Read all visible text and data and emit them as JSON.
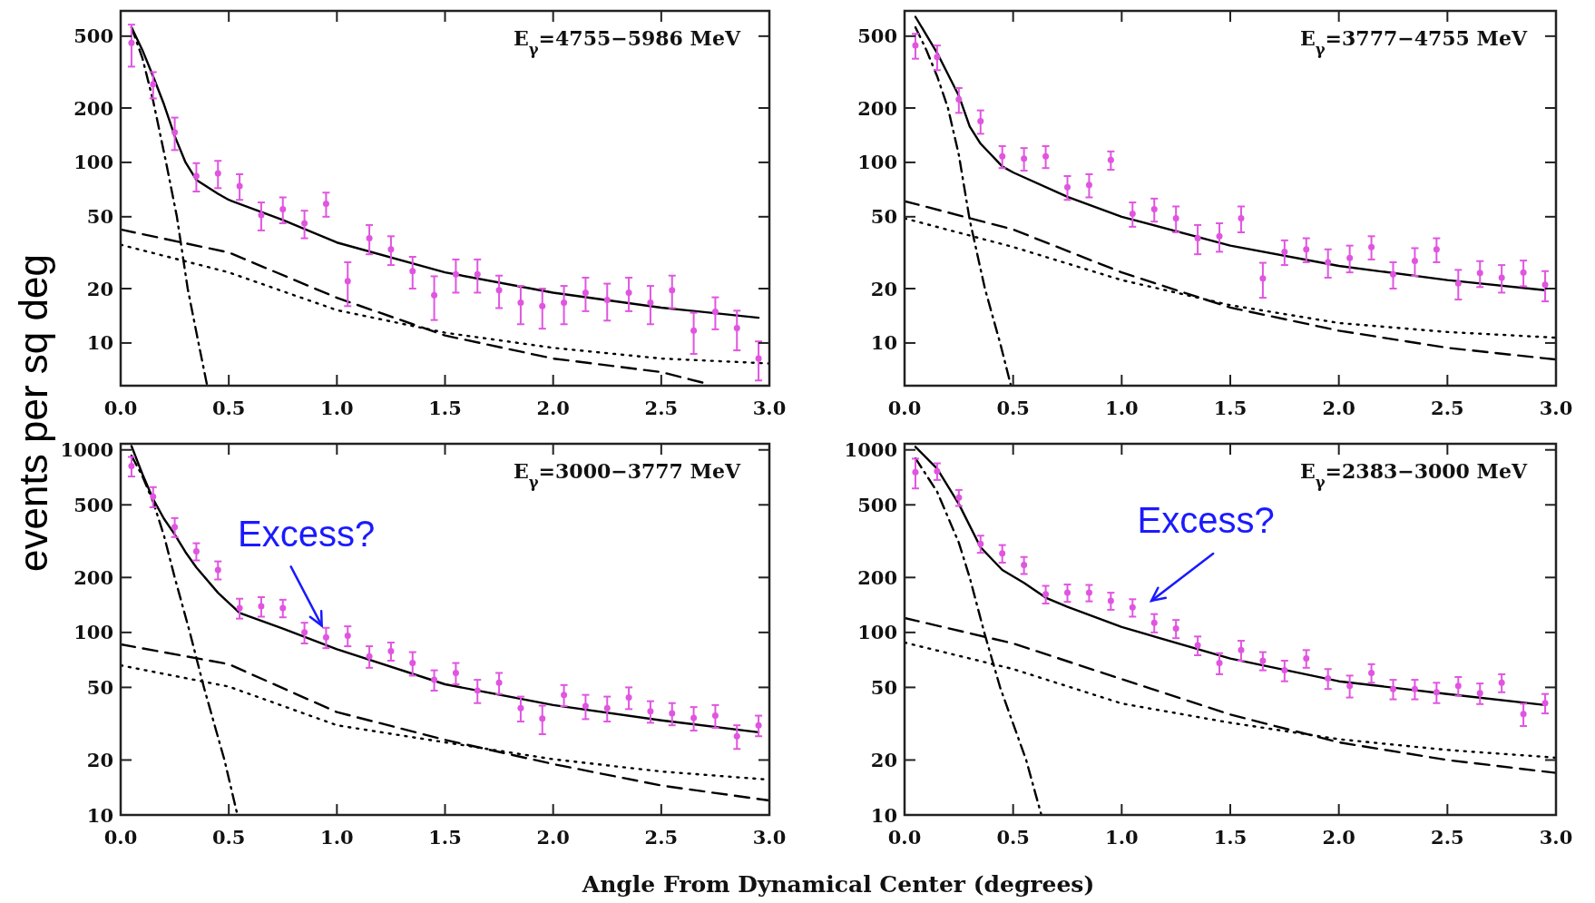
{
  "chart_data": [
    {
      "type": "scatter",
      "ylabel": "events per sq deg",
      "annotations": [
        "E$_{γ}$=4755−5986 MeV"
      ],
      "xlim": [
        0,
        3
      ],
      "xticks": [
        {
          "value": 0,
          "label": "0.0"
        },
        0.5,
        {
          "value": 1,
          "label": "1.0"
        },
        1.5,
        {
          "value": 2,
          "label": "2.0"
        },
        2.5,
        {
          "value": 3,
          "label": "3.0"
        }
      ],
      "ylim": [
        5.8,
        690
      ],
      "yticks": [
        10,
        20,
        50,
        100,
        200,
        500
      ],
      "log": "y",
      "series": [
        {
          "color": "#e055e0",
          "marker": "circle",
          "x": [
            0.05,
            0.15,
            0.25,
            0.35,
            0.45,
            0.55,
            0.65,
            0.75,
            0.85,
            0.95,
            1.05,
            1.15,
            1.25,
            1.35,
            1.45,
            1.55,
            1.65,
            1.75,
            1.85,
            1.95,
            2.05,
            2.15,
            2.25,
            2.35,
            2.45,
            2.55,
            2.65,
            2.75,
            2.85,
            2.95
          ],
          "values": [
            459,
            271,
            147,
            84,
            87,
            74,
            51,
            55,
            46,
            59,
            22,
            38,
            33,
            25,
            18.4,
            24,
            24,
            19.6,
            16.7,
            16,
            16.7,
            19,
            17.3,
            19,
            16.7,
            19.6,
            11.7,
            14.9,
            12.1,
            8.2
          ],
          "errors": [
            120,
            45,
            30,
            15,
            15,
            12,
            9,
            9,
            8,
            9,
            6,
            7,
            6,
            5,
            5,
            5,
            5,
            4,
            4,
            4,
            4,
            4,
            4,
            4,
            4,
            4,
            3,
            3,
            3,
            2
          ]
        },
        {
          "type": "line",
          "color": "#000000",
          "line_style": "solid",
          "x": [
            0.05,
            0.1,
            0.15,
            0.2,
            0.25,
            0.3,
            0.35,
            0.45,
            0.5,
            0.75,
            1,
            1.5,
            2,
            2.5,
            2.95
          ],
          "values": [
            560,
            420,
            300,
            210,
            140,
            100,
            80,
            67,
            62,
            48,
            36,
            24.6,
            19,
            15.7,
            13.8
          ]
        },
        {
          "type": "line",
          "color": "#000000",
          "line_style": "dashdot",
          "x": [
            0.05,
            0.1,
            0.15,
            0.21,
            0.26,
            0.31,
            0.36,
            0.4
          ],
          "values": [
            560,
            380,
            220,
            100,
            50,
            20,
            10,
            5.8
          ]
        },
        {
          "type": "line",
          "color": "#000000",
          "line_style": "dashed",
          "x": [
            0,
            0.5,
            1,
            1.5,
            2,
            2.5,
            2.7
          ],
          "values": [
            42.5,
            31.7,
            17.8,
            11,
            8.2,
            6.9,
            6
          ]
        },
        {
          "type": "line",
          "color": "#000000",
          "line_style": "dotted",
          "x": [
            0,
            0.5,
            1,
            1.5,
            2,
            2.5,
            3
          ],
          "values": [
            35,
            24.6,
            15.2,
            11.4,
            9.4,
            8.2,
            7.7
          ]
        }
      ]
    },
    {
      "type": "scatter",
      "annotations": [
        "E$_{γ}$=3777−4755 MeV"
      ],
      "xlim": [
        0,
        3
      ],
      "xticks": [
        {
          "value": 0,
          "label": "0.0"
        },
        0.5,
        {
          "value": 1,
          "label": "1.0"
        },
        1.5,
        {
          "value": 2,
          "label": "2.0"
        },
        2.5,
        {
          "value": 3,
          "label": "3.0"
        }
      ],
      "ylim": [
        5.8,
        690
      ],
      "yticks": [
        10,
        20,
        50,
        100,
        200,
        500
      ],
      "log": "y",
      "series": [
        {
          "color": "#e055e0",
          "marker": "circle",
          "x": [
            0.05,
            0.15,
            0.25,
            0.35,
            0.45,
            0.55,
            0.65,
            0.75,
            0.85,
            0.95,
            1.05,
            1.15,
            1.25,
            1.35,
            1.45,
            1.55,
            1.65,
            1.75,
            1.85,
            1.95,
            2.05,
            2.15,
            2.25,
            2.35,
            2.45,
            2.55,
            2.65,
            2.75,
            2.85,
            2.95
          ],
          "values": [
            445,
            384,
            223,
            169,
            108,
            105,
            108,
            73,
            75,
            103,
            52,
            55,
            49,
            38,
            39,
            49,
            22.8,
            32,
            33,
            28,
            29.6,
            34,
            24,
            28.5,
            33,
            21.4,
            24.4,
            23,
            24.6,
            21
          ],
          "errors": [
            70,
            60,
            35,
            25,
            15,
            15,
            15,
            11,
            11,
            12,
            8,
            8,
            8,
            7,
            7,
            8,
            5,
            5,
            5,
            5,
            5,
            5,
            4,
            5,
            5,
            4,
            4,
            4,
            4,
            4
          ]
        },
        {
          "type": "line",
          "color": "#000000",
          "line_style": "solid",
          "x": [
            0.05,
            0.15,
            0.25,
            0.3,
            0.35,
            0.45,
            0.5,
            0.75,
            1,
            1.5,
            2,
            2.5,
            2.95
          ],
          "values": [
            640,
            404,
            234,
            158,
            127,
            95,
            88,
            64.5,
            50,
            34.6,
            26.7,
            22.3,
            19.6
          ]
        },
        {
          "type": "line",
          "color": "#000000",
          "line_style": "dashdot",
          "x": [
            0.05,
            0.1,
            0.15,
            0.2,
            0.25,
            0.3,
            0.37,
            0.44,
            0.49
          ],
          "values": [
            560,
            420,
            300,
            200,
            110,
            48,
            20,
            10,
            5.8
          ]
        },
        {
          "type": "line",
          "color": "#000000",
          "line_style": "dashed",
          "x": [
            0,
            0.5,
            1,
            1.5,
            2,
            2.5,
            3
          ],
          "values": [
            61,
            42.5,
            24.6,
            15.7,
            11.7,
            9.4,
            8.1
          ]
        },
        {
          "type": "line",
          "color": "#000000",
          "line_style": "dotted",
          "x": [
            0,
            0.5,
            1,
            1.5,
            2,
            2.5,
            3
          ],
          "values": [
            49,
            34,
            22.3,
            16.2,
            12.9,
            11.5,
            10.7
          ]
        }
      ]
    },
    {
      "type": "scatter",
      "xlabel": "Angle From Dynamical Center (degrees)",
      "annotations": [
        "E$_{γ}$=3000−3777 MeV",
        {
          "text": "Excess?",
          "x": 0.93,
          "y": 109
        }
      ],
      "xlim": [
        0,
        3
      ],
      "xticks": [
        {
          "value": 0,
          "label": "0.0"
        },
        0.5,
        {
          "value": 1,
          "label": "1.0"
        },
        1.5,
        {
          "value": 2,
          "label": "2.0"
        },
        2.5,
        {
          "value": 3,
          "label": "3.0"
        }
      ],
      "ylim": [
        10,
        1080
      ],
      "yticks": [
        10,
        20,
        50,
        100,
        200,
        500,
        1000
      ],
      "log": "y",
      "series": [
        {
          "color": "#e055e0",
          "marker": "circle",
          "x": [
            0.05,
            0.15,
            0.25,
            0.35,
            0.45,
            0.55,
            0.65,
            0.75,
            0.85,
            0.95,
            1.05,
            1.15,
            1.25,
            1.35,
            1.45,
            1.55,
            1.65,
            1.75,
            1.85,
            1.95,
            2.05,
            2.15,
            2.25,
            2.35,
            2.45,
            2.55,
            2.65,
            2.75,
            2.85,
            2.95
          ],
          "values": [
            815,
            555,
            378,
            278,
            220,
            136,
            139,
            136,
            100,
            94,
            96,
            74,
            79,
            68,
            55,
            60,
            48,
            53,
            38.5,
            33.7,
            45.5,
            39.5,
            38.5,
            44,
            37,
            36,
            34,
            35,
            27,
            31
          ],
          "errors": [
            100,
            70,
            45,
            30,
            25,
            17,
            17,
            15,
            13,
            12,
            12,
            10,
            9,
            10,
            7,
            8,
            7,
            7,
            6,
            6,
            6,
            6,
            6,
            6,
            5,
            5,
            5,
            5,
            4,
            4
          ]
        },
        {
          "type": "line",
          "color": "#000000",
          "line_style": "solid",
          "x": [
            0.05,
            0.1,
            0.15,
            0.2,
            0.25,
            0.3,
            0.35,
            0.45,
            0.55,
            0.75,
            1,
            1.5,
            2,
            2.5,
            2.95
          ],
          "values": [
            1050,
            740,
            538,
            420,
            344,
            275,
            227,
            165,
            128,
            105,
            81,
            52,
            40,
            33,
            28.4
          ]
        },
        {
          "type": "line",
          "color": "#000000",
          "line_style": "dashdot",
          "x": [
            0.05,
            0.1,
            0.15,
            0.2,
            0.25,
            0.32,
            0.385,
            0.48,
            0.54
          ],
          "values": [
            930,
            720,
            520,
            340,
            200,
            100,
            50,
            20,
            10
          ]
        },
        {
          "type": "line",
          "color": "#000000",
          "line_style": "dashed",
          "x": [
            0,
            0.5,
            1,
            1.5,
            2,
            2.5,
            3
          ],
          "values": [
            86,
            67,
            36.6,
            25.8,
            19,
            14.5,
            12
          ]
        },
        {
          "type": "line",
          "color": "#000000",
          "line_style": "dotted",
          "x": [
            0,
            0.5,
            1,
            1.5,
            2,
            2.5,
            3
          ],
          "values": [
            66,
            50.5,
            31,
            25,
            20.2,
            17.3,
            15.6
          ]
        }
      ]
    },
    {
      "type": "scatter",
      "annotations": [
        "E$_{γ}$=2383−3000 MeV",
        "Excess?"
      ],
      "xlim": [
        0,
        3
      ],
      "xticks": [
        {
          "value": 0,
          "label": "0.0"
        },
        0.5,
        {
          "value": 1,
          "label": "1.0"
        },
        1.5,
        {
          "value": 2,
          "label": "2.0"
        },
        2.5,
        {
          "value": 3,
          "label": "3.0"
        }
      ],
      "ylim": [
        10,
        1080
      ],
      "yticks": [
        10,
        20,
        50,
        100,
        200,
        500,
        1000
      ],
      "log": "y",
      "series": [
        {
          "color": "#e055e0",
          "marker": "circle",
          "x": [
            0.05,
            0.15,
            0.25,
            0.35,
            0.45,
            0.55,
            0.65,
            0.75,
            0.85,
            0.95,
            1.05,
            1.15,
            1.25,
            1.35,
            1.45,
            1.55,
            1.65,
            1.75,
            1.85,
            1.95,
            2.05,
            2.15,
            2.25,
            2.35,
            2.45,
            2.55,
            2.65,
            2.75,
            2.85,
            2.95
          ],
          "values": [
            755,
            764,
            548,
            306,
            271,
            234,
            162,
            165,
            165,
            149,
            137,
            113,
            105,
            85,
            68,
            80,
            70,
            62,
            72,
            56,
            51,
            60,
            49,
            49,
            47,
            51,
            46.5,
            53,
            35.7,
            41
          ],
          "errors": [
            140,
            80,
            55,
            33,
            30,
            25,
            18,
            18,
            17,
            16,
            15,
            13,
            12,
            10,
            9,
            10,
            8,
            8,
            8,
            7,
            7,
            7,
            6,
            6,
            6,
            6,
            6,
            6,
            5,
            5
          ]
        },
        {
          "type": "line",
          "color": "#000000",
          "line_style": "solid",
          "x": [
            0.05,
            0.15,
            0.25,
            0.35,
            0.45,
            0.55,
            0.65,
            0.75,
            1,
            1.5,
            2,
            2.5,
            2.95
          ],
          "values": [
            1040,
            789,
            505,
            293,
            220,
            187,
            155,
            138,
            107,
            72,
            54,
            46,
            40
          ]
        },
        {
          "type": "line",
          "color": "#000000",
          "line_style": "dashdot",
          "x": [
            0.05,
            0.15,
            0.25,
            0.3,
            0.367,
            0.44,
            0.56,
            0.63
          ],
          "values": [
            900,
            590,
            310,
            200,
            100,
            50,
            20,
            10
          ]
        },
        {
          "type": "line",
          "color": "#000000",
          "line_style": "dashed",
          "x": [
            0,
            0.5,
            1,
            1.5,
            2,
            2.5,
            3
          ],
          "values": [
            120,
            87,
            55.5,
            35.5,
            25,
            20,
            17
          ]
        },
        {
          "type": "line",
          "color": "#000000",
          "line_style": "dotted",
          "x": [
            0,
            0.5,
            1,
            1.5,
            2,
            2.5,
            3
          ],
          "values": [
            88,
            63,
            40.8,
            32,
            26,
            22.7,
            20.6
          ]
        }
      ]
    }
  ]
}
